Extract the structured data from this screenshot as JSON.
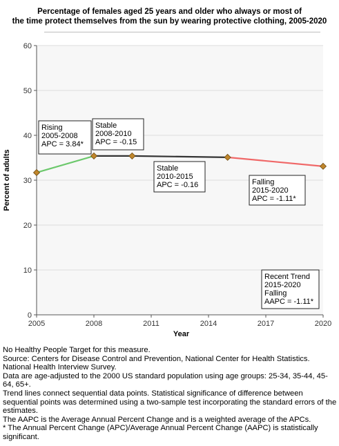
{
  "chart_data": {
    "type": "line",
    "title_lines": [
      "Percentage of females aged 25 years and older who always or most of",
      "the time protect themselves from the sun by wearing protective clothing, 2005-2020"
    ],
    "xlabel": "Year",
    "ylabel": "Percent of adults",
    "xlim": [
      2005,
      2020
    ],
    "ylim": [
      0,
      60
    ],
    "x_ticks": [
      2005,
      2008,
      2011,
      2014,
      2017,
      2020
    ],
    "y_ticks": [
      0,
      10,
      20,
      30,
      40,
      50,
      60
    ],
    "grid": true,
    "points": [
      {
        "x": 2005,
        "y": 31.7
      },
      {
        "x": 2008,
        "y": 35.4
      },
      {
        "x": 2010,
        "y": 35.4
      },
      {
        "x": 2015,
        "y": 35.1
      },
      {
        "x": 2020,
        "y": 33.1
      }
    ],
    "segments": [
      {
        "from": 2005,
        "to": 2008,
        "trend": "rising",
        "color": "#6cc86c"
      },
      {
        "from": 2008,
        "to": 2010,
        "trend": "stable",
        "color": "#333333"
      },
      {
        "from": 2010,
        "to": 2015,
        "trend": "stable",
        "color": "#333333"
      },
      {
        "from": 2015,
        "to": 2020,
        "trend": "falling",
        "color": "#f06868"
      }
    ],
    "annotations": [
      {
        "lines": [
          "Rising",
          "2005-2008",
          "APC =  3.84*"
        ]
      },
      {
        "lines": [
          "Stable",
          "2008-2010",
          "APC = -0.15"
        ]
      },
      {
        "lines": [
          "Stable",
          "2010-2015",
          "APC = -0.16"
        ]
      },
      {
        "lines": [
          "Falling",
          "2015-2020",
          "APC = -1.11*"
        ]
      },
      {
        "lines": [
          "Recent Trend",
          "2015-2020",
          "Falling",
          "AAPC = -1.11*"
        ]
      }
    ],
    "colors": {
      "marker_fill": "#c0862c",
      "marker_stroke": "#6b4a12",
      "plot_bg": "#f7f7f7",
      "grid": "#dcdcdc"
    }
  },
  "footnotes": [
    "No Healthy People Target for this measure.",
    "Source: Centers for Disease Control and Prevention, National Center for Health Statistics. National Health Interview Survey.",
    "Data are age-adjusted to the 2000 US standard population using age groups: 25-34, 35-44, 45-64, 65+.",
    "Trend lines connect sequential data points. Statistical significance of difference between sequential points was determined using a two-sample test incorporating the standard errors of the estimates.",
    "The AAPC is the Average Annual Percent Change and is a weighted average of the APCs.",
    "* The Annual Percent Change (APC)/Average Annual Percent Change (AAPC) is statistically significant."
  ]
}
